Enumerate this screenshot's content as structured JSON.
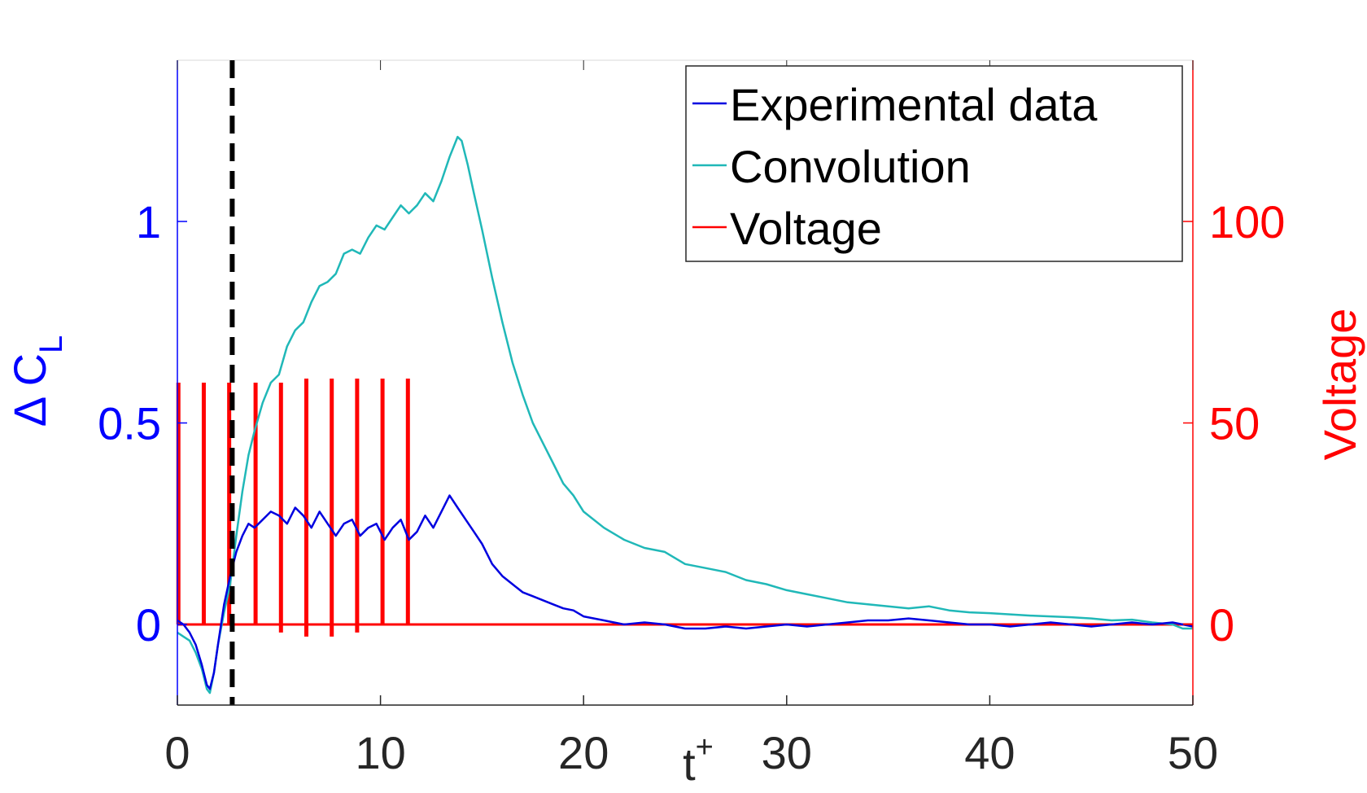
{
  "chart_data": {
    "type": "line",
    "xlabel": "t",
    "xlabel_superscript": "+",
    "ylabel_left": "Δ C",
    "ylabel_left_subscript": "L",
    "ylabel_right": "Voltage",
    "xlim": [
      0,
      50
    ],
    "ylim_left": [
      -0.2,
      1.4
    ],
    "ylim_right": [
      -20,
      140
    ],
    "xticks": [
      "0",
      "10",
      "20",
      "30",
      "40",
      "50"
    ],
    "xtick_values": [
      0,
      10,
      20,
      30,
      40,
      50
    ],
    "yticks_left": [
      "0",
      "0.5",
      "1"
    ],
    "ytick_values_left": [
      0,
      0.5,
      1
    ],
    "yticks_right": [
      "0",
      "50",
      "100"
    ],
    "ytick_values_right": [
      0,
      50,
      100
    ],
    "grid": false,
    "legend_position": "top-right",
    "colors": {
      "experimental": "#0000e0",
      "convolution": "#20b8b8",
      "voltage": "#ff0000",
      "marker": "#000000",
      "left_axis": "#0000ff",
      "right_axis": "#ff0000",
      "x_axis": "#262626"
    },
    "vertical_marker_x": 2.7,
    "series": [
      {
        "name": "Experimental data",
        "axis": "left",
        "x": [
          0,
          0.3,
          0.6,
          0.9,
          1.2,
          1.45,
          1.6,
          1.8,
          2.0,
          2.3,
          2.6,
          2.9,
          3.2,
          3.5,
          3.8,
          4.2,
          4.6,
          5.0,
          5.4,
          5.8,
          6.2,
          6.6,
          7.0,
          7.4,
          7.8,
          8.2,
          8.6,
          9.0,
          9.4,
          9.8,
          10.2,
          10.6,
          11.0,
          11.4,
          11.8,
          12.2,
          12.6,
          13.0,
          13.4,
          13.8,
          14.2,
          14.6,
          15.0,
          15.5,
          16.0,
          16.5,
          17.0,
          17.5,
          18.0,
          18.5,
          19.0,
          19.5,
          20.0,
          21.0,
          22.0,
          23.0,
          24.0,
          25.0,
          26.0,
          27.0,
          28.0,
          29.0,
          30.0,
          31.0,
          32.0,
          33.0,
          34.0,
          35.0,
          36.0,
          37.0,
          38.0,
          39.0,
          40.0,
          41.0,
          42.0,
          43.0,
          44.0,
          45.0,
          46.0,
          47.0,
          48.0,
          49.0,
          50.0
        ],
        "y": [
          0.01,
          0.0,
          -0.02,
          -0.05,
          -0.1,
          -0.15,
          -0.16,
          -0.12,
          -0.05,
          0.05,
          0.12,
          0.18,
          0.22,
          0.25,
          0.24,
          0.26,
          0.28,
          0.27,
          0.25,
          0.29,
          0.27,
          0.24,
          0.28,
          0.25,
          0.22,
          0.25,
          0.26,
          0.22,
          0.24,
          0.25,
          0.21,
          0.24,
          0.26,
          0.21,
          0.23,
          0.27,
          0.24,
          0.28,
          0.32,
          0.29,
          0.26,
          0.23,
          0.2,
          0.15,
          0.12,
          0.1,
          0.08,
          0.07,
          0.06,
          0.05,
          0.04,
          0.035,
          0.02,
          0.01,
          0.0,
          0.005,
          0.0,
          -0.01,
          -0.01,
          -0.005,
          -0.01,
          -0.005,
          0.0,
          -0.005,
          0.0,
          0.005,
          0.01,
          0.01,
          0.015,
          0.01,
          0.005,
          0.0,
          0.0,
          -0.005,
          0.0,
          0.005,
          0.0,
          -0.005,
          0.0,
          0.005,
          0.0,
          0.005,
          -0.005
        ]
      },
      {
        "name": "Convolution",
        "axis": "left",
        "x": [
          0,
          0.3,
          0.6,
          0.9,
          1.2,
          1.45,
          1.6,
          1.8,
          2.0,
          2.3,
          2.6,
          2.9,
          3.2,
          3.5,
          3.8,
          4.2,
          4.6,
          5.0,
          5.4,
          5.8,
          6.2,
          6.6,
          7.0,
          7.4,
          7.8,
          8.2,
          8.6,
          9.0,
          9.4,
          9.8,
          10.2,
          10.6,
          11.0,
          11.4,
          11.8,
          12.2,
          12.6,
          13.0,
          13.4,
          13.8,
          14.0,
          14.3,
          14.6,
          15.0,
          15.5,
          16.0,
          16.5,
          17.0,
          17.5,
          18.0,
          18.5,
          19.0,
          19.5,
          20.0,
          21.0,
          22.0,
          23.0,
          24.0,
          25.0,
          26.0,
          27.0,
          28.0,
          29.0,
          30.0,
          31.0,
          32.0,
          33.0,
          34.0,
          35.0,
          36.0,
          37.0,
          38.0,
          39.0,
          40.0,
          41.0,
          42.0,
          43.0,
          44.0,
          45.0,
          46.0,
          47.0,
          48.0,
          49.0,
          49.5,
          50.0
        ],
        "y": [
          -0.02,
          -0.03,
          -0.04,
          -0.07,
          -0.11,
          -0.16,
          -0.17,
          -0.12,
          -0.05,
          0.03,
          0.1,
          0.22,
          0.33,
          0.42,
          0.48,
          0.55,
          0.6,
          0.62,
          0.69,
          0.73,
          0.75,
          0.8,
          0.84,
          0.85,
          0.87,
          0.92,
          0.93,
          0.92,
          0.96,
          0.99,
          0.98,
          1.01,
          1.04,
          1.02,
          1.04,
          1.07,
          1.05,
          1.1,
          1.16,
          1.21,
          1.2,
          1.14,
          1.07,
          0.98,
          0.86,
          0.75,
          0.65,
          0.57,
          0.5,
          0.45,
          0.4,
          0.35,
          0.32,
          0.28,
          0.24,
          0.21,
          0.19,
          0.18,
          0.15,
          0.14,
          0.13,
          0.11,
          0.1,
          0.085,
          0.075,
          0.065,
          0.055,
          0.05,
          0.045,
          0.04,
          0.045,
          0.035,
          0.03,
          0.028,
          0.025,
          0.022,
          0.02,
          0.018,
          0.015,
          0.01,
          0.012,
          0.005,
          0.0,
          -0.01,
          -0.01
        ]
      },
      {
        "name": "Voltage",
        "axis": "right",
        "pulse_x": [
          0.05,
          1.3,
          2.55,
          3.85,
          5.1,
          6.35,
          7.6,
          8.85,
          10.1,
          11.35
        ],
        "pulse_peak": [
          60,
          60,
          60,
          60,
          60,
          61,
          61,
          61,
          61,
          61
        ],
        "pulse_trough": [
          0,
          0,
          0,
          0,
          -2,
          -3,
          -3,
          -2,
          0,
          0
        ],
        "baseline": 0,
        "x_end": 50
      }
    ]
  }
}
